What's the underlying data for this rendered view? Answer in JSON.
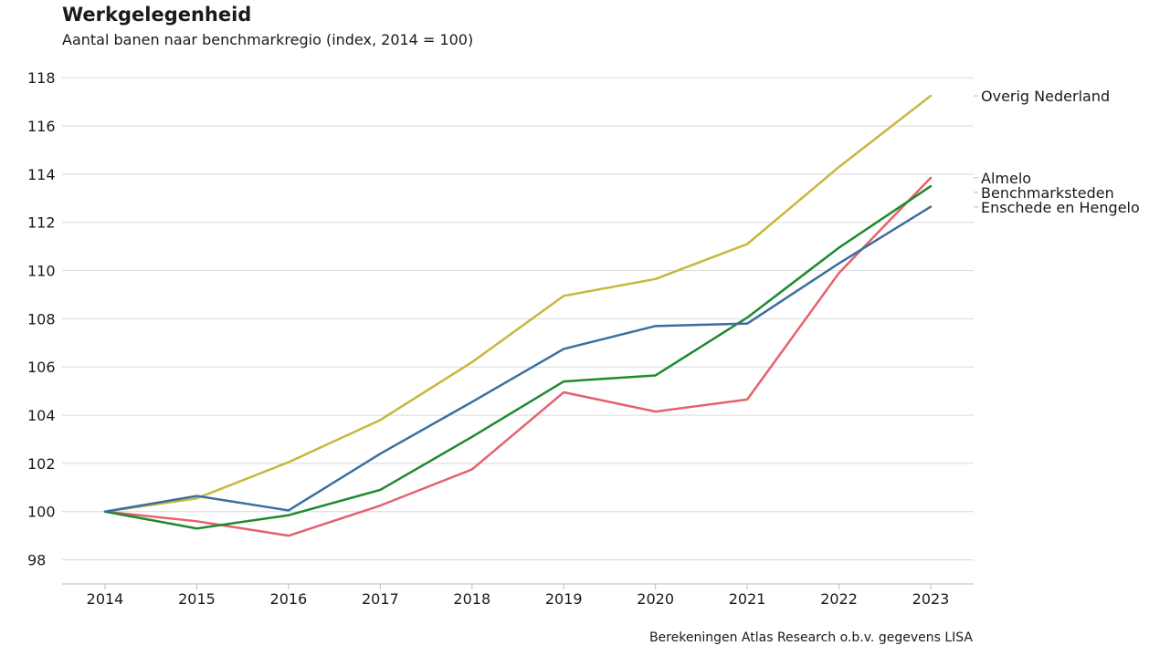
{
  "chart_data": {
    "type": "line",
    "title": "Werkgelegenheid",
    "subtitle": "Aantal banen naar benchmarkregio (index, 2014 = 100)",
    "source": "Berekeningen Atlas Research o.b.v. gegevens LISA",
    "xlabel": "",
    "ylabel": "",
    "x": [
      2014,
      2015,
      2016,
      2017,
      2018,
      2019,
      2020,
      2021,
      2022,
      2023
    ],
    "x_tick_labels": [
      "2014",
      "2015",
      "2016",
      "2017",
      "2018",
      "2019",
      "2020",
      "2021",
      "2022",
      "2023"
    ],
    "ylim": [
      97,
      118.5
    ],
    "y_ticks": [
      98,
      100,
      102,
      104,
      106,
      108,
      110,
      112,
      114,
      116,
      118
    ],
    "y_tick_labels": [
      "98",
      "100",
      "102",
      "104",
      "106",
      "108",
      "110",
      "112",
      "114",
      "116",
      "118"
    ],
    "grid": true,
    "legend_placement": "right (direct labels)",
    "series": [
      {
        "name": "Overig Nederland",
        "color": "#c8b73c",
        "values": [
          100,
          100.55,
          102.05,
          103.8,
          106.2,
          108.95,
          109.65,
          111.1,
          114.3,
          117.25
        ]
      },
      {
        "name": "Almelo",
        "color": "#e5616e",
        "values": [
          100,
          99.6,
          99.0,
          100.25,
          101.75,
          104.95,
          104.15,
          104.65,
          109.9,
          113.85
        ]
      },
      {
        "name": "Benchmarksteden",
        "color": "#1e8a2e",
        "values": [
          100,
          99.3,
          99.85,
          100.9,
          103.1,
          105.4,
          105.65,
          108.05,
          110.95,
          113.5
        ]
      },
      {
        "name": "Enschede en Hengelo",
        "color": "#3a6ea1",
        "values": [
          100,
          100.65,
          100.05,
          102.4,
          104.55,
          106.75,
          107.7,
          107.8,
          110.3,
          112.65
        ]
      }
    ]
  }
}
